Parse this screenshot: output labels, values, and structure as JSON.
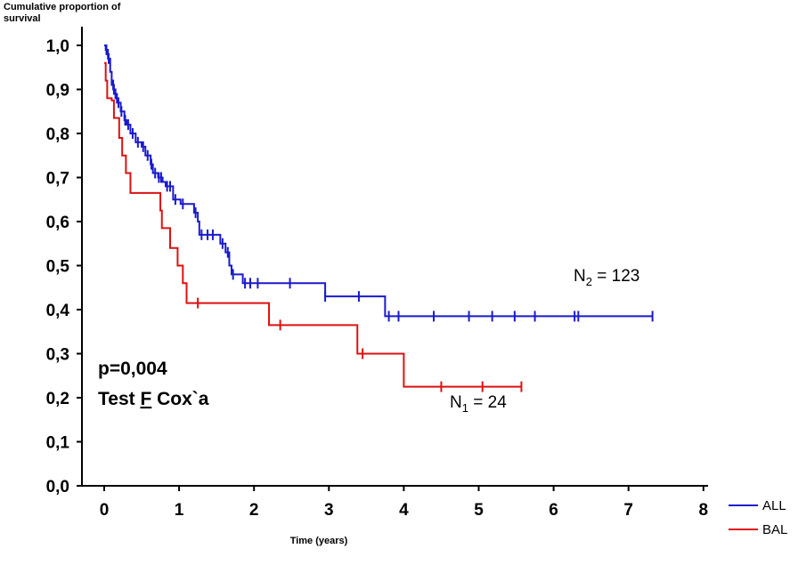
{
  "chart_data": {
    "type": "line",
    "ylabel": "Cumulative proportion of survival",
    "xlabel": "Time (years)",
    "xlim": [
      0,
      8
    ],
    "ylim": [
      0,
      1
    ],
    "x_ticks": [
      "0",
      "1",
      "2",
      "3",
      "4",
      "5",
      "6",
      "7",
      "8"
    ],
    "y_ticks": [
      "0,0",
      "0,1",
      "0,2",
      "0,3",
      "0,4",
      "0,5",
      "0,6",
      "0,7",
      "0,8",
      "0,9",
      "1,0"
    ],
    "grid": false,
    "legend_position": "bottom-right",
    "annotations": {
      "p_value": "p=0,004",
      "test_prefix": "Test ",
      "test_letter": "F",
      "test_suffix": " Cox`a"
    },
    "series": [
      {
        "name": "ALL",
        "color": "#1a1acc",
        "n_label": "N",
        "n_sub": "2",
        "n_value": " = 123",
        "steps": [
          [
            0,
            1.0
          ],
          [
            0.02,
            0.99
          ],
          [
            0.05,
            0.97
          ],
          [
            0.08,
            0.94
          ],
          [
            0.1,
            0.91
          ],
          [
            0.13,
            0.89
          ],
          [
            0.17,
            0.87
          ],
          [
            0.22,
            0.85
          ],
          [
            0.27,
            0.83
          ],
          [
            0.3,
            0.82
          ],
          [
            0.35,
            0.8
          ],
          [
            0.42,
            0.78
          ],
          [
            0.5,
            0.77
          ],
          [
            0.55,
            0.75
          ],
          [
            0.62,
            0.73
          ],
          [
            0.65,
            0.71
          ],
          [
            0.72,
            0.7
          ],
          [
            0.78,
            0.69
          ],
          [
            0.82,
            0.68
          ],
          [
            0.92,
            0.65
          ],
          [
            1.02,
            0.64
          ],
          [
            1.2,
            0.62
          ],
          [
            1.25,
            0.6
          ],
          [
            1.27,
            0.57
          ],
          [
            1.55,
            0.55
          ],
          [
            1.62,
            0.53
          ],
          [
            1.67,
            0.5
          ],
          [
            1.7,
            0.48
          ],
          [
            1.85,
            0.46
          ],
          [
            2.95,
            0.43
          ],
          [
            3.75,
            0.385
          ],
          [
            7.32,
            0.385
          ]
        ],
        "censor_x": [
          0.03,
          0.06,
          0.12,
          0.15,
          0.19,
          0.23,
          0.28,
          0.32,
          0.38,
          0.45,
          0.52,
          0.58,
          0.63,
          0.68,
          0.73,
          0.76,
          0.84,
          0.88,
          0.95,
          1.05,
          1.22,
          1.3,
          1.38,
          1.45,
          1.58,
          1.65,
          1.72,
          1.88,
          1.95,
          2.05,
          2.48,
          2.95,
          3.4,
          3.8,
          3.93,
          4.4,
          4.87,
          5.18,
          5.48,
          5.75,
          6.28,
          6.33,
          7.32
        ]
      },
      {
        "name": "BAL",
        "color": "#dd1111",
        "n_label": "N",
        "n_sub": "1",
        "n_value": " = 24",
        "steps": [
          [
            0,
            0.96
          ],
          [
            0.02,
            0.92
          ],
          [
            0.04,
            0.88
          ],
          [
            0.1,
            0.875
          ],
          [
            0.13,
            0.835
          ],
          [
            0.2,
            0.79
          ],
          [
            0.24,
            0.75
          ],
          [
            0.29,
            0.71
          ],
          [
            0.35,
            0.665
          ],
          [
            0.75,
            0.625
          ],
          [
            0.77,
            0.585
          ],
          [
            0.88,
            0.54
          ],
          [
            0.98,
            0.5
          ],
          [
            1.05,
            0.46
          ],
          [
            1.1,
            0.415
          ],
          [
            2.2,
            0.365
          ],
          [
            3.38,
            0.3
          ],
          [
            4.0,
            0.225
          ],
          [
            5.57,
            0.225
          ]
        ],
        "censor_x": [
          1.25,
          2.35,
          3.45,
          4.5,
          5.05,
          5.57
        ]
      }
    ]
  }
}
